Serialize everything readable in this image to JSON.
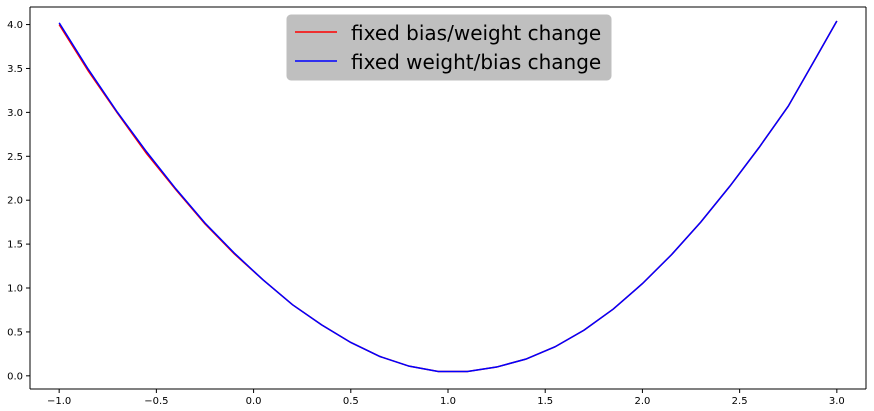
{
  "chart_data": {
    "type": "line",
    "title": "",
    "xlabel": "",
    "ylabel": "",
    "xlim": [
      -1.15,
      3.15
    ],
    "ylim": [
      -0.15,
      4.2
    ],
    "grid": false,
    "legend_placement": "top-center",
    "x_ticks": [
      -1.0,
      -0.5,
      0.0,
      0.5,
      1.0,
      1.5,
      2.0,
      2.5,
      3.0
    ],
    "x_tick_labels": [
      "−1.0",
      "−0.5",
      "0.0",
      "0.5",
      "1.0",
      "1.5",
      "2.0",
      "2.5",
      "3.0"
    ],
    "y_ticks": [
      0.0,
      0.5,
      1.0,
      1.5,
      2.0,
      2.5,
      3.0,
      3.5,
      4.0
    ],
    "y_tick_labels": [
      "0.0",
      "0.5",
      "1.0",
      "1.5",
      "2.0",
      "2.5",
      "3.0",
      "3.5",
      "4.0"
    ],
    "series": [
      {
        "name": "fixed bias/weight change",
        "color": "#ff0000",
        "x": [
          -1.0,
          -0.85,
          -0.7,
          -0.55,
          -0.4,
          -0.25,
          -0.1,
          0.05,
          0.2,
          0.35,
          0.5,
          0.65,
          0.8,
          0.95,
          1.1,
          1.25,
          1.4,
          1.55,
          1.7,
          1.85,
          2.0,
          2.15,
          2.3,
          2.45,
          2.6,
          2.75,
          2.9,
          3.0
        ],
        "y": [
          4.0,
          3.47,
          2.99,
          2.53,
          2.12,
          1.73,
          1.39,
          1.09,
          0.81,
          0.58,
          0.38,
          0.22,
          0.11,
          0.05,
          0.05,
          0.1,
          0.19,
          0.33,
          0.52,
          0.76,
          1.05,
          1.38,
          1.75,
          2.16,
          2.6,
          3.07,
          3.65,
          4.04
        ]
      },
      {
        "name": "fixed weight/bias change",
        "color": "#0000ff",
        "x": [
          -1.0,
          -0.85,
          -0.7,
          -0.55,
          -0.4,
          -0.25,
          -0.1,
          0.05,
          0.2,
          0.35,
          0.5,
          0.65,
          0.8,
          0.95,
          1.1,
          1.25,
          1.4,
          1.55,
          1.7,
          1.85,
          2.0,
          2.15,
          2.3,
          2.45,
          2.6,
          2.75,
          2.9,
          3.0
        ],
        "y": [
          4.02,
          3.49,
          3.0,
          2.55,
          2.13,
          1.74,
          1.4,
          1.09,
          0.81,
          0.58,
          0.38,
          0.22,
          0.11,
          0.05,
          0.05,
          0.1,
          0.19,
          0.33,
          0.52,
          0.76,
          1.05,
          1.38,
          1.75,
          2.16,
          2.6,
          3.07,
          3.65,
          4.04
        ]
      }
    ]
  }
}
